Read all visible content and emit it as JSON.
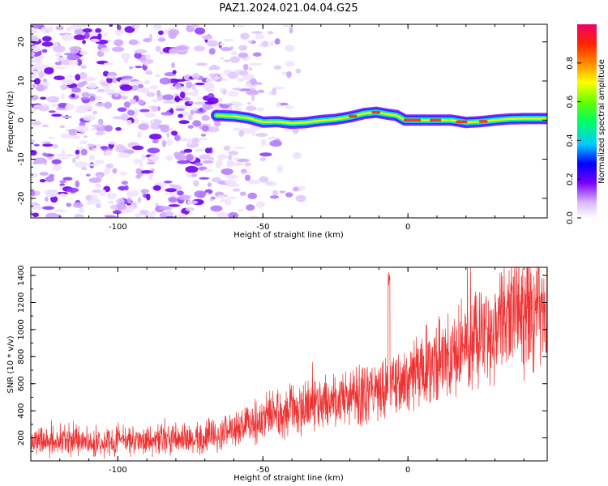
{
  "figure": {
    "title": "PAZ1.2024.021.04.04.G25"
  },
  "chart_data": [
    {
      "type": "heatmap",
      "xlabel": "Height of straight line (km)",
      "ylabel": "Frequency (Hz)",
      "xlim": [
        -130,
        48
      ],
      "ylim": [
        -25,
        24.5
      ],
      "xticks": [
        -100,
        -50,
        0
      ],
      "yticks": [
        -20,
        -10,
        0,
        10,
        20
      ],
      "colorbar": {
        "label": "Normalized spectral amplitude",
        "range": [
          0,
          1
        ],
        "ticks": [
          "0.0",
          "0.2",
          "0.4",
          "0.6",
          "0.8"
        ],
        "tick_values": [
          0,
          0.2,
          0.4,
          0.6,
          0.8
        ]
      },
      "ridge": {
        "x": [
          -66,
          -60,
          -55,
          -50,
          -45,
          -40,
          -35,
          -30,
          -25,
          -20,
          -15,
          -11,
          -7,
          -4,
          -1,
          5,
          10,
          15,
          20,
          25,
          30,
          35,
          40,
          48
        ],
        "freq_hz": [
          1.2,
          1.0,
          0.5,
          -0.5,
          -0.4,
          -0.8,
          -0.6,
          -0.1,
          0.2,
          0.8,
          1.7,
          2.0,
          1.5,
          1.2,
          0,
          0,
          0,
          0,
          -0.6,
          -0.4,
          0,
          0.3,
          0.4,
          0.4
        ]
      }
    },
    {
      "type": "line",
      "xlabel": "Height of straight line (km)",
      "ylabel": "SNR (10 * v/v)",
      "xlim": [
        -130,
        48
      ],
      "ylim": [
        30,
        1460
      ],
      "xticks": [
        -100,
        -50,
        0
      ],
      "yticks": [
        200,
        400,
        600,
        800,
        1000,
        1200,
        1400
      ],
      "series_color": "#ee3333",
      "trend": {
        "x": [
          -130,
          -110,
          -90,
          -75,
          -65,
          -55,
          -45,
          -35,
          -25,
          -15,
          -8,
          -5,
          0,
          10,
          20,
          30,
          40,
          48
        ],
        "y": [
          180,
          175,
          180,
          190,
          230,
          300,
          370,
          420,
          470,
          520,
          560,
          610,
          640,
          760,
          900,
          1030,
          1140,
          1200
        ]
      }
    }
  ]
}
